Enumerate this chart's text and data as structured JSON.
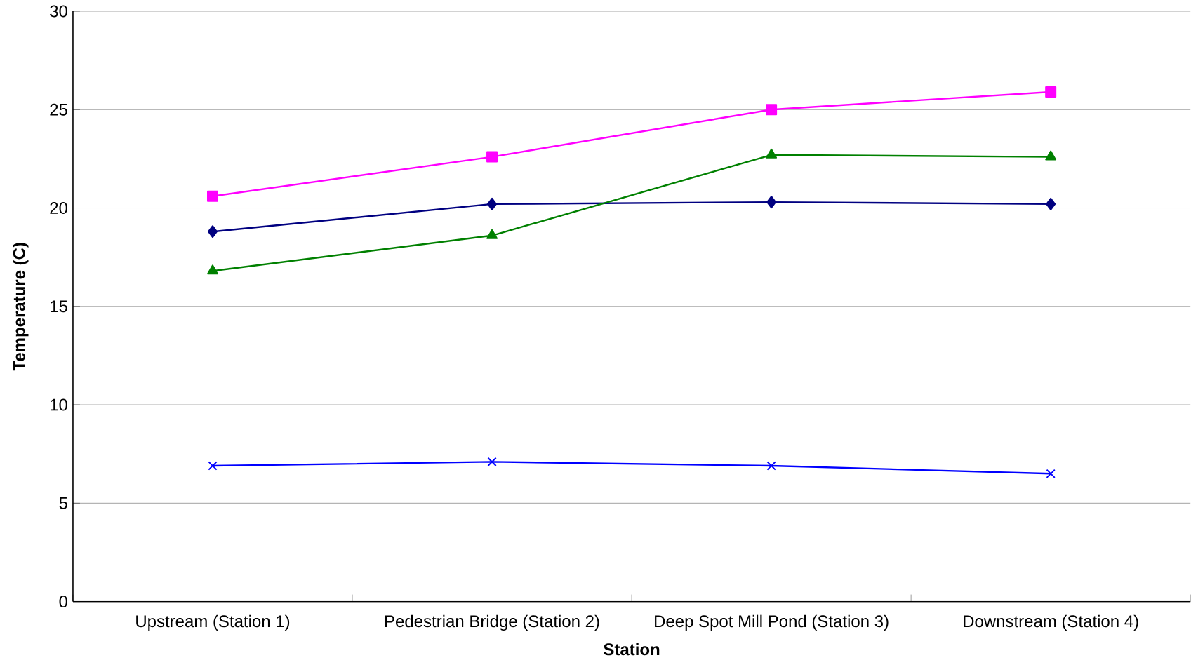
{
  "chart_data": {
    "type": "line",
    "xlabel": "Station",
    "ylabel": "Temperature (C)",
    "categories": [
      "Upstream (Station 1)",
      "Pedestrian Bridge (Station 2)",
      "Deep Spot Mill Pond (Station 3)",
      "Downstream (Station 4)"
    ],
    "series": [
      {
        "color": "#000080",
        "marker": "diamond",
        "values": [
          18.8,
          20.2,
          20.3,
          20.2
        ]
      },
      {
        "color": "#ff00ff",
        "marker": "square",
        "values": [
          20.6,
          22.6,
          25.0,
          25.9
        ]
      },
      {
        "color": "#008000",
        "marker": "triangle",
        "values": [
          16.8,
          18.6,
          22.7,
          22.6
        ]
      },
      {
        "color": "#0000ff",
        "marker": "cross",
        "values": [
          6.9,
          7.1,
          6.9,
          6.5
        ]
      }
    ],
    "ylim": [
      0,
      30
    ],
    "yticks": [
      0,
      5,
      10,
      15,
      20,
      25,
      30
    ],
    "grid": "y"
  }
}
